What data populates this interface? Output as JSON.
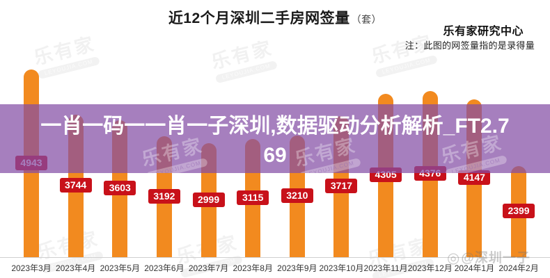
{
  "header": {
    "title": "近12个月深圳二手房网签量",
    "unit": "（套）",
    "source": "乐有家研究中心",
    "note": "注：此图的网签量指的是录得量"
  },
  "overlay": {
    "full_text": "一肖一码一一肖一子深圳,数据驱动分析解析_FT2.769",
    "line1": "一肖一码一一肖一子深圳,数据驱动分析解析_FT2.7",
    "line2": "69"
  },
  "watermark": {
    "brand": "乐有家",
    "domain": "LEYOUJIA.COM"
  },
  "corner_watermark": {
    "icon": "◎",
    "text": "@深圳一子"
  },
  "colors": {
    "bar": "#F28A1F",
    "value_label_bg": "#C8111A",
    "value_label_text": "#FFFFFF",
    "overlay_purple": "rgba(131,77,165,0.72)",
    "axis_line": "#CFCFCF",
    "tick_text": "#333333"
  },
  "chart_data": {
    "type": "bar",
    "title": "近12个月深圳二手房网签量（套）",
    "source": "乐有家研究中心",
    "note": "注：此图的网签量指的是录得量",
    "categories": [
      "2023年3月",
      "2023年4月",
      "2023年5月",
      "2023年6月",
      "2023年7月",
      "2023年8月",
      "2023年9月",
      "2023年10月",
      "2023年11月",
      "2023年12月",
      "2024年1月",
      "2024年2月"
    ],
    "values": [
      4943,
      3744,
      3603,
      3192,
      2999,
      3115,
      3210,
      3717,
      4305,
      4376,
      4147,
      2399
    ],
    "xlabel": "",
    "ylabel": "网签量（套）",
    "ylim": [
      0,
      5000
    ],
    "grid": false,
    "legend": "none",
    "value_labels": "shown in red boxes centered on each bar"
  }
}
